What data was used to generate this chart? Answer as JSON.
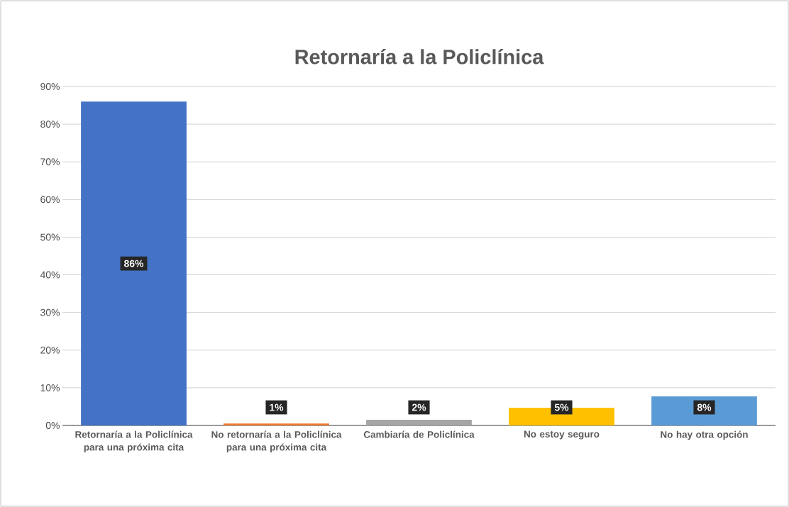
{
  "chart_data": {
    "type": "bar",
    "title": "Retornaría a la Policlínica",
    "categories": [
      "Retornaría a la Policlínica para una próxima cita",
      "No retornaría a la Policlínica para una próxima cita",
      "Cambiaría de Policlínica",
      "No estoy seguro",
      "No hay otra opción"
    ],
    "values": [
      86,
      0.5,
      1.5,
      4.7,
      7.7
    ],
    "value_labels": [
      "86%",
      "1%",
      "2%",
      "5%",
      "8%"
    ],
    "colors": [
      "#4472c4",
      "#ed7d31",
      "#a5a5a5",
      "#ffc000",
      "#5b9bd5"
    ],
    "ylim": [
      0,
      90
    ],
    "yticks": [
      {
        "value": 0,
        "label": "0%"
      },
      {
        "value": 10,
        "label": "10%"
      },
      {
        "value": 20,
        "label": "20%"
      },
      {
        "value": 30,
        "label": "30%"
      },
      {
        "value": 40,
        "label": "40%"
      },
      {
        "value": 50,
        "label": "50%"
      },
      {
        "value": 60,
        "label": "60%"
      },
      {
        "value": 70,
        "label": "70%"
      },
      {
        "value": 80,
        "label": "80%"
      },
      {
        "value": 90,
        "label": "90%"
      }
    ],
    "grid": "y"
  }
}
